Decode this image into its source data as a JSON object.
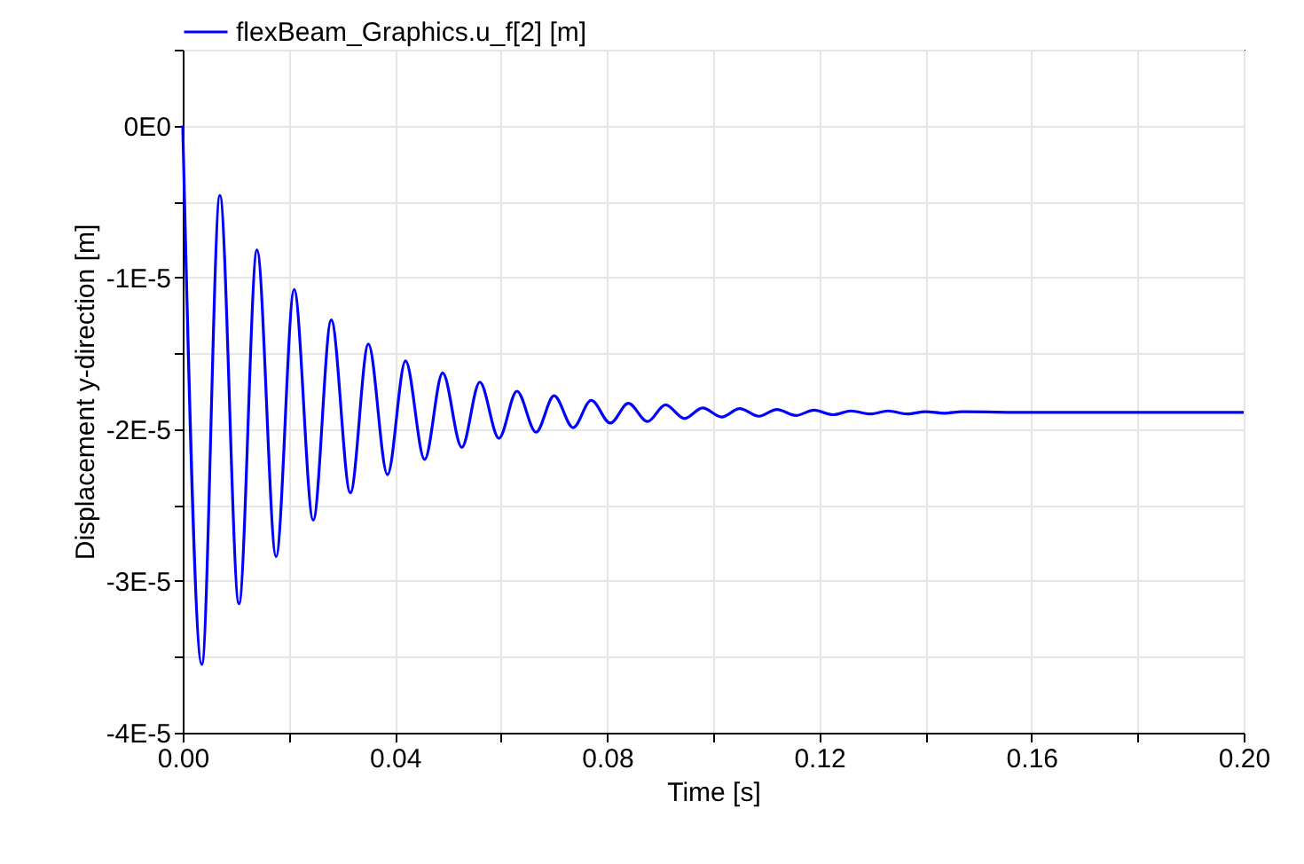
{
  "chart_data": {
    "type": "line",
    "xlabel": "Time [s]",
    "ylabel": "Displacement y-direction [m]",
    "xlim": [
      0,
      0.2
    ],
    "ylim": [
      -4e-05,
      5e-06
    ],
    "xticks": [
      {
        "value": 0,
        "label": "0.00"
      },
      {
        "value": 0.02,
        "label": null
      },
      {
        "value": 0.04,
        "label": "0.04"
      },
      {
        "value": 0.06,
        "label": null
      },
      {
        "value": 0.08,
        "label": "0.08"
      },
      {
        "value": 0.1,
        "label": null
      },
      {
        "value": 0.12,
        "label": "0.12"
      },
      {
        "value": 0.14,
        "label": null
      },
      {
        "value": 0.16,
        "label": "0.16"
      },
      {
        "value": 0.18,
        "label": null
      },
      {
        "value": 0.2,
        "label": "0.20"
      }
    ],
    "yticks": [
      {
        "value": -4e-05,
        "label": "-4E-5"
      },
      {
        "value": -3.5e-05,
        "label": null
      },
      {
        "value": -3e-05,
        "label": "-3E-5"
      },
      {
        "value": -2.5e-05,
        "label": null
      },
      {
        "value": -2e-05,
        "label": "-2E-5"
      },
      {
        "value": -1.5e-05,
        "label": null
      },
      {
        "value": -1e-05,
        "label": "-1E-5"
      },
      {
        "value": -5e-06,
        "label": null
      },
      {
        "value": 0,
        "label": "0E0"
      },
      {
        "value": 5e-06,
        "label": null
      }
    ],
    "grid": true,
    "legend": "top",
    "line_style": "solid",
    "marker": "none",
    "series": [
      {
        "name": "flexBeam_Graphics.u_f[2] [m]",
        "color": "#0000ff",
        "x": [
          0,
          0.0036,
          0.007,
          0.0106,
          0.014,
          0.0176,
          0.021,
          0.0246,
          0.028,
          0.0316,
          0.035,
          0.0386,
          0.042,
          0.0456,
          0.049,
          0.0526,
          0.056,
          0.0596,
          0.063,
          0.0666,
          0.07,
          0.0736,
          0.077,
          0.0806,
          0.084,
          0.0876,
          0.091,
          0.0946,
          0.098,
          0.1016,
          0.105,
          0.1086,
          0.112,
          0.1156,
          0.119,
          0.1226,
          0.126,
          0.1296,
          0.133,
          0.1366,
          0.14,
          0.1436,
          0.147,
          0.16,
          0.18,
          0.2
        ],
        "values": [
          0,
          -3.55e-05,
          -4.6e-06,
          -3.15e-05,
          -8.2e-06,
          -2.84e-05,
          -1.08e-05,
          -2.6e-05,
          -1.28e-05,
          -2.42e-05,
          -1.44e-05,
          -2.3e-05,
          -1.55e-05,
          -2.2e-05,
          -1.63e-05,
          -2.12e-05,
          -1.69e-05,
          -2.06e-05,
          -1.75e-05,
          -2.02e-05,
          -1.78e-05,
          -1.99e-05,
          -1.81e-05,
          -1.96e-05,
          -1.83e-05,
          -1.95e-05,
          -1.84e-05,
          -1.93e-05,
          -1.86e-05,
          -1.92e-05,
          -1.865e-05,
          -1.915e-05,
          -1.87e-05,
          -1.91e-05,
          -1.875e-05,
          -1.905e-05,
          -1.88e-05,
          -1.9e-05,
          -1.88e-05,
          -1.9e-05,
          -1.885e-05,
          -1.895e-05,
          -1.885e-05,
          -1.89e-05,
          -1.89e-05,
          -1.89e-05
        ]
      }
    ]
  }
}
